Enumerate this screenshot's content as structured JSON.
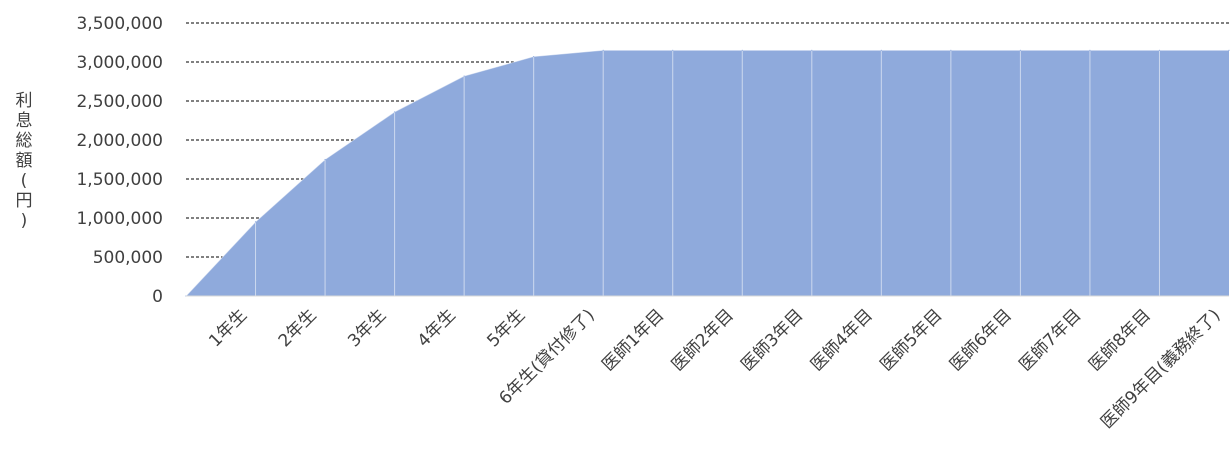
{
  "chart_data": {
    "type": "area",
    "title": "",
    "xlabel": "",
    "ylabel": "利息総額(円)",
    "ylim": [
      0,
      3500000
    ],
    "y_ticks": [
      0,
      500000,
      1000000,
      1500000,
      2000000,
      2500000,
      3000000,
      3500000
    ],
    "y_tick_labels": [
      "0",
      "500,000",
      "1,000,000",
      "1,500,000",
      "2,000,000",
      "2,500,000",
      "3,000,000",
      "3,500,000"
    ],
    "grid": "horizontal-dashed",
    "legend": "none",
    "categories": [
      "1年生",
      "2年生",
      "3年生",
      "4年生",
      "5年生",
      "6年生(貸付修了)",
      "医師1年目",
      "医師2年目",
      "医師3年目",
      "医師4年目",
      "医師5年目",
      "医師6年目",
      "医師7年目",
      "医師8年目",
      "医師9年目(義務終了)"
    ],
    "x": [
      0,
      1,
      2,
      3,
      4,
      5,
      6,
      7,
      8,
      9,
      10,
      11,
      12,
      13,
      14,
      15
    ],
    "series": [
      {
        "values": [
          0,
          950000,
          1750000,
          2360000,
          2820000,
          3070000,
          3150000,
          3150000,
          3150000,
          3150000,
          3150000,
          3150000,
          3150000,
          3150000,
          3150000,
          3150000
        ]
      }
    ],
    "colors": {
      "area_fill": "#8faadc",
      "area_edge": "#ffffff",
      "grid": "#000000",
      "text": "#404040",
      "axis": "#d9d9d9"
    }
  }
}
